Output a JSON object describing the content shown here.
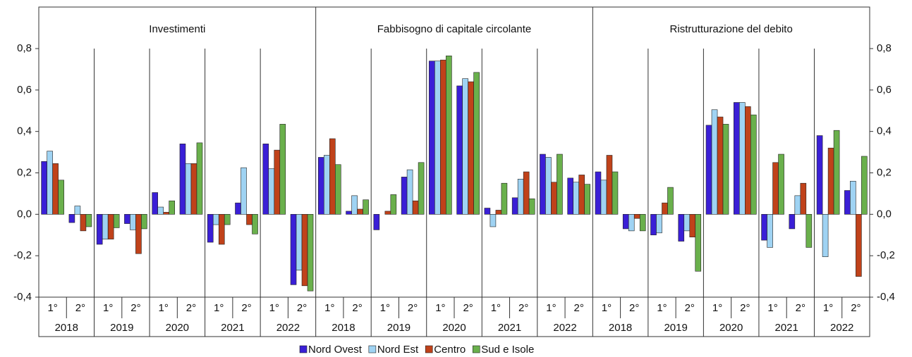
{
  "chart_data": [
    {
      "type": "bar",
      "title": "Investimenti",
      "categories": [
        "1°",
        "2°",
        "1°",
        "2°",
        "1°",
        "2°",
        "1°",
        "2°",
        "1°",
        "2°"
      ],
      "category_groups": [
        "2018",
        "2019",
        "2020",
        "2021",
        "2022"
      ],
      "ylim": [
        -0.4,
        0.8
      ],
      "yticks": [
        {
          "value": -0.4,
          "label": "-0,4"
        },
        {
          "value": -0.2,
          "label": "-0,2"
        },
        {
          "value": 0,
          "label": "0,0"
        },
        {
          "value": 0.2,
          "label": "0,2"
        },
        {
          "value": 0.4,
          "label": "0,4"
        },
        {
          "value": 0.6,
          "label": "0,6"
        },
        {
          "value": 0.8,
          "label": "0,8"
        }
      ],
      "series": [
        {
          "name": "Nord Ovest",
          "color": "#3a1fd6",
          "values": [
            0.255,
            -0.04,
            -0.145,
            -0.045,
            0.105,
            0.34,
            -0.135,
            0.055,
            0.34,
            -0.34
          ]
        },
        {
          "name": "Nord Est",
          "color": "#9fd3f3",
          "values": [
            0.305,
            0.04,
            -0.12,
            -0.075,
            0.035,
            0.245,
            -0.05,
            0.225,
            0.22,
            -0.27
          ]
        },
        {
          "name": "Centro",
          "color": "#c0421a",
          "values": [
            0.245,
            -0.08,
            -0.12,
            -0.19,
            0.01,
            0.245,
            -0.145,
            -0.05,
            0.31,
            -0.345
          ]
        },
        {
          "name": "Sud e Isole",
          "color": "#6ab04c",
          "values": [
            0.165,
            -0.06,
            -0.065,
            -0.07,
            0.065,
            0.345,
            -0.05,
            -0.095,
            0.435,
            -0.37
          ]
        }
      ]
    },
    {
      "type": "bar",
      "title": "Fabbisogno di capitale circolante",
      "categories": [
        "1°",
        "2°",
        "1°",
        "2°",
        "1°",
        "2°",
        "1°",
        "2°",
        "1°",
        "2°"
      ],
      "category_groups": [
        "2018",
        "2019",
        "2020",
        "2021",
        "2022"
      ],
      "ylim": [
        -0.4,
        0.8
      ],
      "yticks": [
        {
          "value": -0.4,
          "label": "-0,4"
        },
        {
          "value": -0.2,
          "label": "-0,2"
        },
        {
          "value": 0,
          "label": "0,0"
        },
        {
          "value": 0.2,
          "label": "0,2"
        },
        {
          "value": 0.4,
          "label": "0,4"
        },
        {
          "value": 0.6,
          "label": "0,6"
        },
        {
          "value": 0.8,
          "label": "0,8"
        }
      ],
      "series": [
        {
          "name": "Nord Ovest",
          "color": "#3a1fd6",
          "values": [
            0.275,
            0.015,
            -0.075,
            0.18,
            0.74,
            0.62,
            0.03,
            0.08,
            0.29,
            0.175
          ]
        },
        {
          "name": "Nord Est",
          "color": "#9fd3f3",
          "values": [
            0.285,
            0.09,
            0.0,
            0.215,
            0.74,
            0.655,
            -0.06,
            0.17,
            0.275,
            0.155
          ]
        },
        {
          "name": "Centro",
          "color": "#c0421a",
          "values": [
            0.365,
            0.025,
            0.015,
            0.065,
            0.745,
            0.64,
            0.02,
            0.205,
            0.155,
            0.19
          ]
        },
        {
          "name": "Sud e Isole",
          "color": "#6ab04c",
          "values": [
            0.24,
            0.07,
            0.095,
            0.25,
            0.765,
            0.685,
            0.15,
            0.075,
            0.29,
            0.145
          ]
        }
      ]
    },
    {
      "type": "bar",
      "title": "Ristrutturazione del debito",
      "categories": [
        "1°",
        "2°",
        "1°",
        "2°",
        "1°",
        "2°",
        "1°",
        "2°",
        "1°",
        "2°"
      ],
      "category_groups": [
        "2018",
        "2019",
        "2020",
        "2021",
        "2022"
      ],
      "ylim": [
        -0.4,
        0.8
      ],
      "yticks": [
        {
          "value": -0.4,
          "label": "-0,4"
        },
        {
          "value": -0.2,
          "label": "-0,2"
        },
        {
          "value": 0,
          "label": "0,0"
        },
        {
          "value": 0.2,
          "label": "0,2"
        },
        {
          "value": 0.4,
          "label": "0,4"
        },
        {
          "value": 0.6,
          "label": "0,6"
        },
        {
          "value": 0.8,
          "label": "0,8"
        }
      ],
      "series": [
        {
          "name": "Nord Ovest",
          "color": "#3a1fd6",
          "values": [
            0.205,
            -0.07,
            -0.1,
            -0.13,
            0.43,
            0.54,
            -0.125,
            -0.07,
            0.38,
            0.115
          ]
        },
        {
          "name": "Nord Est",
          "color": "#9fd3f3",
          "values": [
            0.165,
            -0.08,
            -0.09,
            -0.08,
            0.505,
            0.54,
            -0.16,
            0.09,
            -0.205,
            0.16
          ]
        },
        {
          "name": "Centro",
          "color": "#c0421a",
          "values": [
            0.285,
            -0.02,
            0.055,
            -0.11,
            0.47,
            0.52,
            0.25,
            0.15,
            0.32,
            -0.3
          ]
        },
        {
          "name": "Sud e Isole",
          "color": "#6ab04c",
          "values": [
            0.205,
            -0.08,
            0.13,
            -0.275,
            0.435,
            0.48,
            0.29,
            -0.16,
            0.405,
            0.28
          ]
        }
      ]
    }
  ]
}
